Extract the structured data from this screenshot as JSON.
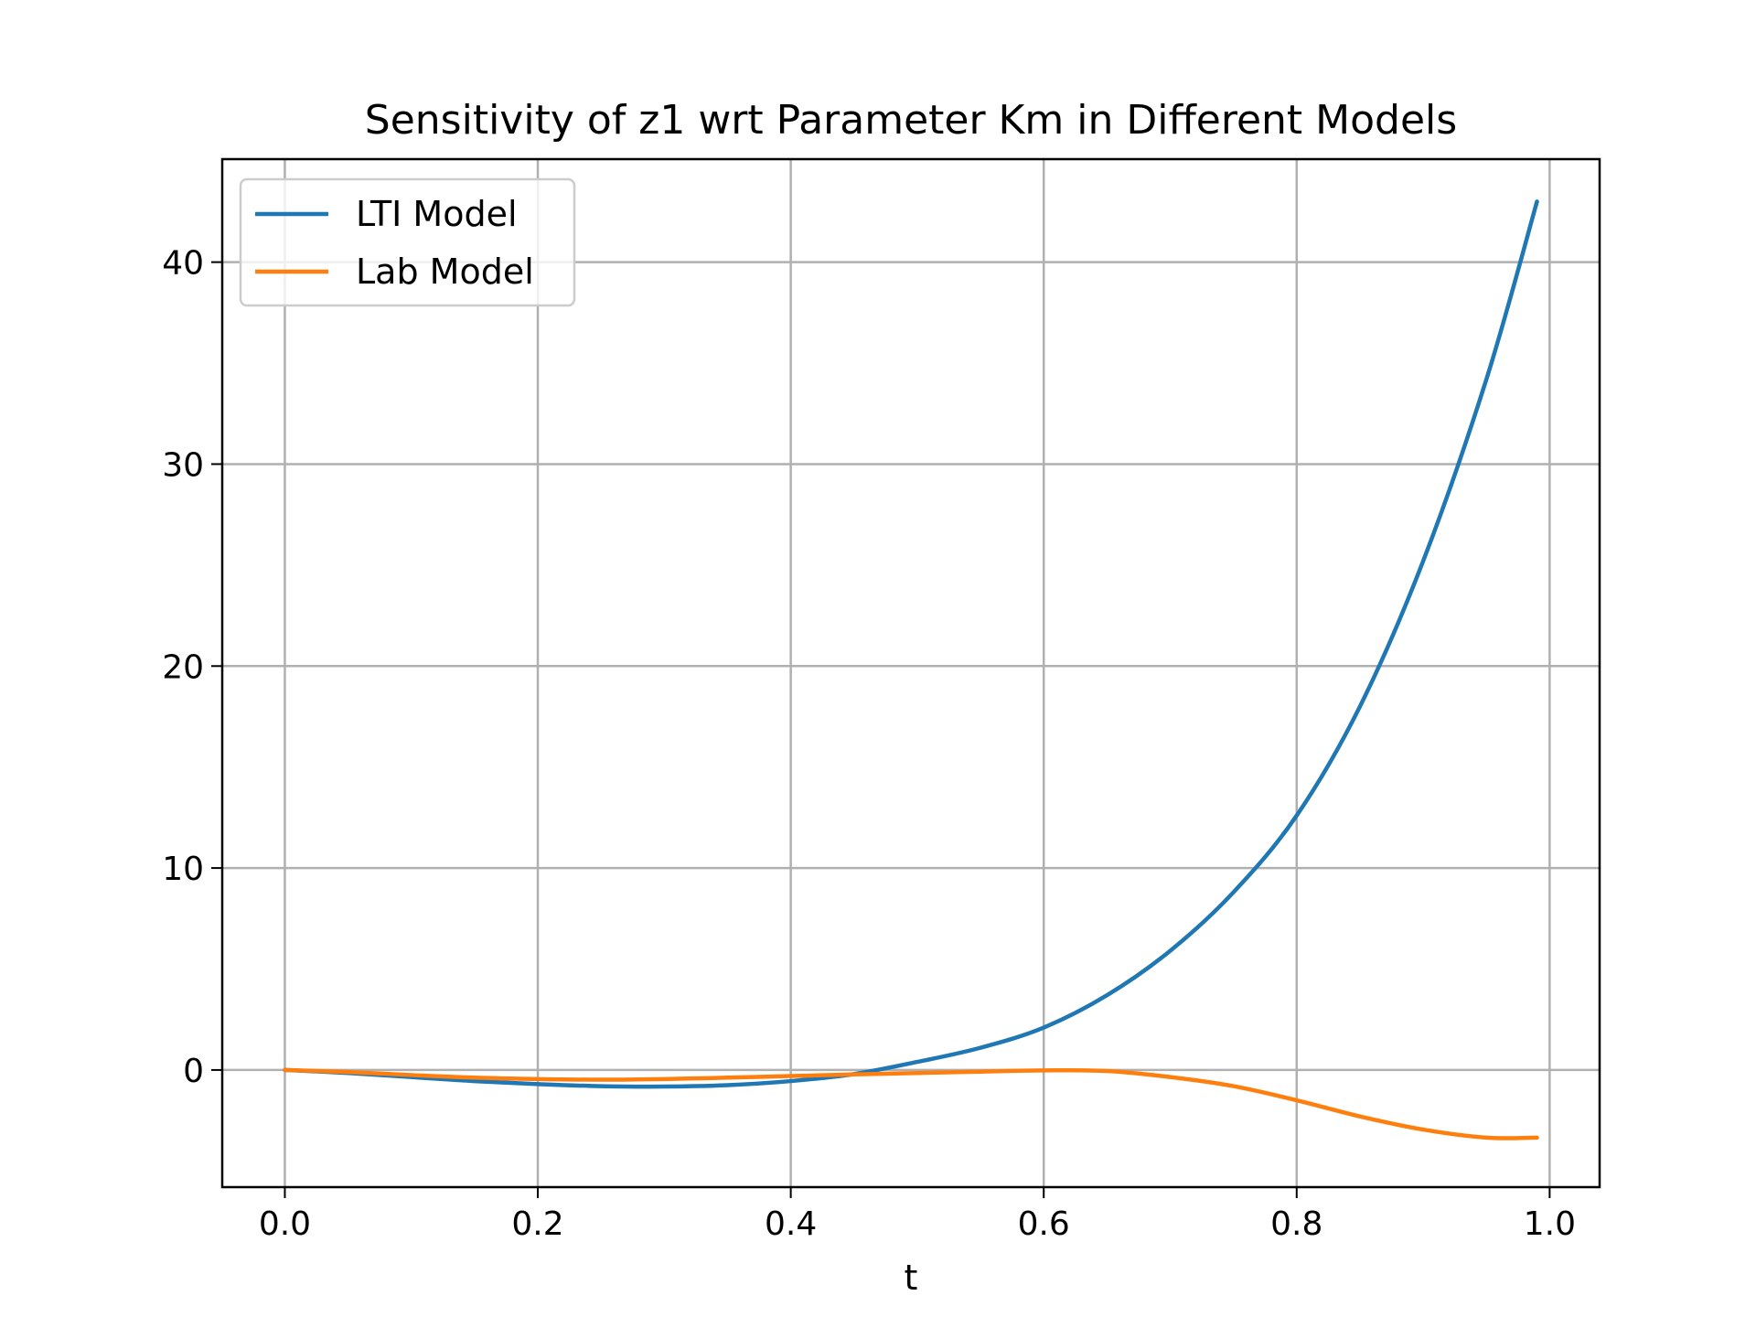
{
  "chart_data": {
    "type": "line",
    "title": "Sensitivity of z1 wrt Parameter Km in Different Models",
    "xlabel": "t",
    "ylabel": "",
    "xlim": [
      -0.0495,
      1.0395
    ],
    "ylim": [
      -5.8,
      45.1
    ],
    "xticks": [
      0.0,
      0.2,
      0.4,
      0.6,
      0.8,
      1.0
    ],
    "xtick_labels": [
      "0.0",
      "0.2",
      "0.4",
      "0.6",
      "0.8",
      "1.0"
    ],
    "yticks": [
      0,
      10,
      20,
      30,
      40
    ],
    "ytick_labels": [
      "0",
      "10",
      "20",
      "30",
      "40"
    ],
    "grid": true,
    "legend_position": "top-left",
    "series": [
      {
        "name": "LTI Model",
        "color": "#1f77b4",
        "x": [
          0.0,
          0.05,
          0.1,
          0.15,
          0.2,
          0.25,
          0.3,
          0.35,
          0.4,
          0.45,
          0.5,
          0.55,
          0.6,
          0.65,
          0.7,
          0.75,
          0.8,
          0.85,
          0.9,
          0.95,
          0.99
        ],
        "y": [
          0.0,
          -0.15,
          -0.35,
          -0.55,
          -0.7,
          -0.8,
          -0.82,
          -0.75,
          -0.55,
          -0.2,
          0.4,
          1.1,
          2.1,
          3.7,
          5.9,
          8.8,
          12.6,
          18.0,
          25.2,
          34.2,
          43.0
        ]
      },
      {
        "name": "Lab Model",
        "color": "#ff7f0e",
        "x": [
          0.0,
          0.05,
          0.1,
          0.15,
          0.2,
          0.25,
          0.3,
          0.35,
          0.4,
          0.45,
          0.5,
          0.55,
          0.6,
          0.65,
          0.7,
          0.75,
          0.8,
          0.85,
          0.9,
          0.95,
          0.99
        ],
        "y": [
          0.0,
          -0.1,
          -0.25,
          -0.38,
          -0.45,
          -0.48,
          -0.45,
          -0.38,
          -0.3,
          -0.22,
          -0.15,
          -0.08,
          -0.02,
          -0.05,
          -0.35,
          -0.8,
          -1.5,
          -2.3,
          -2.95,
          -3.35,
          -3.35
        ]
      }
    ]
  }
}
